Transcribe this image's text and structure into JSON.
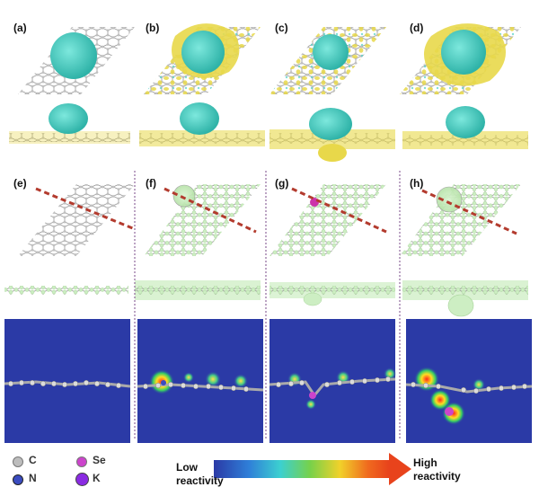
{
  "panels": {
    "labels": [
      "(a)",
      "(b)",
      "(c)",
      "(d)",
      "(e)",
      "(f)",
      "(g)",
      "(h)"
    ]
  },
  "legend": {
    "items": [
      {
        "symbol": "C",
        "color": "#bdbdbd",
        "icon": "carbon-atom-icon"
      },
      {
        "symbol": "Se",
        "color": "#cc44cc",
        "icon": "selenium-atom-icon"
      },
      {
        "symbol": "N",
        "color": "#3b4cc0",
        "icon": "nitrogen-atom-icon"
      },
      {
        "symbol": "K",
        "color": "#8a2be2",
        "icon": "potassium-atom-icon"
      }
    ]
  },
  "colorbar": {
    "low_line1": "Low",
    "low_line2": "reactivity",
    "high_line1": "High",
    "high_line2": "reactivity"
  },
  "colors": {
    "density_cyan": "#4fd1c5",
    "density_yellow": "#e8d84a",
    "fukui_green": "#c9ecc0",
    "map_background": "#2b3aa6",
    "cut_line": "#b33b2e"
  }
}
